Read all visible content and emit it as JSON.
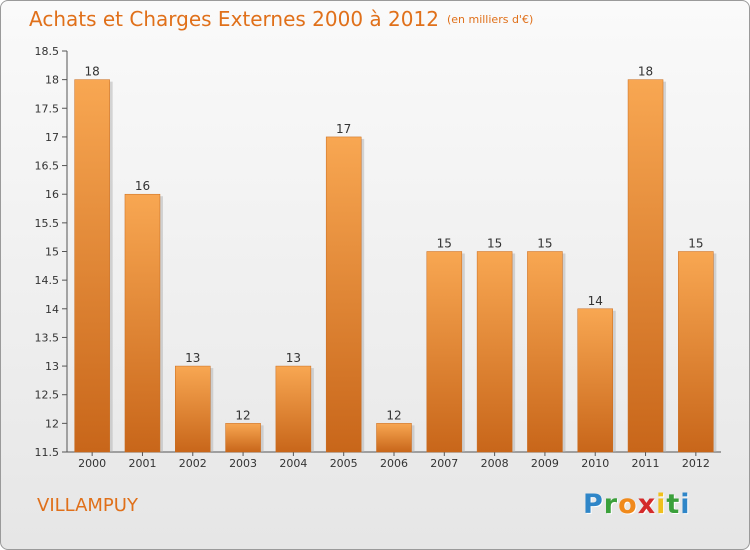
{
  "header": {
    "title": "Achats et Charges Externes 2000 à 2012",
    "unit_note": "(en milliers d'€)"
  },
  "footer": {
    "town": "VILLAMPUY",
    "brand_letters": [
      {
        "char": "P",
        "color": "#2f86c8"
      },
      {
        "char": "r",
        "color": "#3ba03b"
      },
      {
        "char": "o",
        "color": "#f08a1c"
      },
      {
        "char": "x",
        "color": "#d42a2a"
      },
      {
        "char": "i",
        "color": "#f0c01c"
      },
      {
        "char": "t",
        "color": "#3ba03b"
      },
      {
        "char": "i",
        "color": "#2f86c8"
      }
    ]
  },
  "colors": {
    "accent": "#e0701a",
    "bar_top": "#f8a752",
    "bar_bottom": "#c8661a"
  },
  "chart_data": {
    "type": "bar",
    "title": "Achats et Charges Externes 2000 à 2012",
    "subtitle": "(en milliers d'€)",
    "categories": [
      "2000",
      "2001",
      "2002",
      "2003",
      "2004",
      "2005",
      "2006",
      "2007",
      "2008",
      "2009",
      "2010",
      "2011",
      "2012"
    ],
    "values": [
      18,
      16,
      13,
      12,
      13,
      17,
      12,
      15,
      15,
      15,
      14,
      18,
      15
    ],
    "value_labels": [
      "18",
      "16",
      "13",
      "12",
      "13",
      "17",
      "12",
      "15",
      "15",
      "15",
      "14",
      "18",
      "15"
    ],
    "yticks": [
      "11.5",
      "12",
      "12.5",
      "13",
      "13.5",
      "14",
      "14.5",
      "15",
      "15.5",
      "16",
      "16.5",
      "17",
      "17.5",
      "18",
      "18.5"
    ],
    "ylim": [
      11.5,
      18.5
    ],
    "xlabel": "",
    "ylabel": "",
    "grid": false,
    "legend": "none"
  }
}
